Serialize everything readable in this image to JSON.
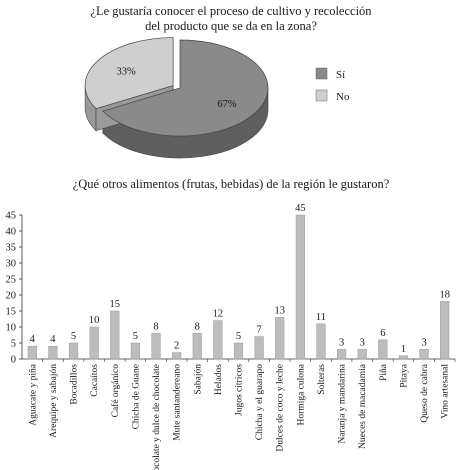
{
  "chart_data": [
    {
      "type": "pie",
      "title": "¿Le gustaría conocer el proceso de cultivo y recolección del producto que se da en la zona?",
      "title_lines": [
        "¿Le gustaría conocer el proceso de cultivo y recolección",
        "del producto que se da en la zona?"
      ],
      "categories": [
        "Sí",
        "No"
      ],
      "values": [
        67,
        33
      ],
      "labels": [
        "67%",
        "33%"
      ],
      "colors": [
        "#8a8a8a",
        "#cfcfcf"
      ],
      "style": "3d",
      "legend_position": "right"
    },
    {
      "type": "bar",
      "title": "¿Qué otros alimentos (frutas, bebidas) de la región le gustaron?",
      "categories": [
        "Aguacate y piña",
        "Arequipe y sabajón",
        "Bocadillos",
        "Cacaítos",
        "Café orgánico",
        "Chicha de Guane",
        "Chocolate y dulce de chocolate",
        "Mute santandereano",
        "Sabajón",
        "Helados",
        "Jugos cítricos",
        "Chicha y el guarapo",
        "Dulces de coco y leche",
        "Hormiga culona",
        "Solteras",
        "Naranja y mandarina",
        "Nueces de macadamia",
        "Piña",
        "Pitaya",
        "Queso de cabra",
        "Vino artesanal"
      ],
      "values": [
        4,
        4,
        5,
        10,
        15,
        5,
        8,
        2,
        8,
        12,
        5,
        7,
        13,
        45,
        11,
        3,
        3,
        6,
        1,
        3,
        18
      ],
      "y_ticks": [
        0,
        5,
        10,
        15,
        20,
        25,
        30,
        35,
        40,
        45
      ],
      "ylim": [
        0,
        45
      ],
      "bar_color": "#bdbdbd",
      "grid": false
    }
  ]
}
